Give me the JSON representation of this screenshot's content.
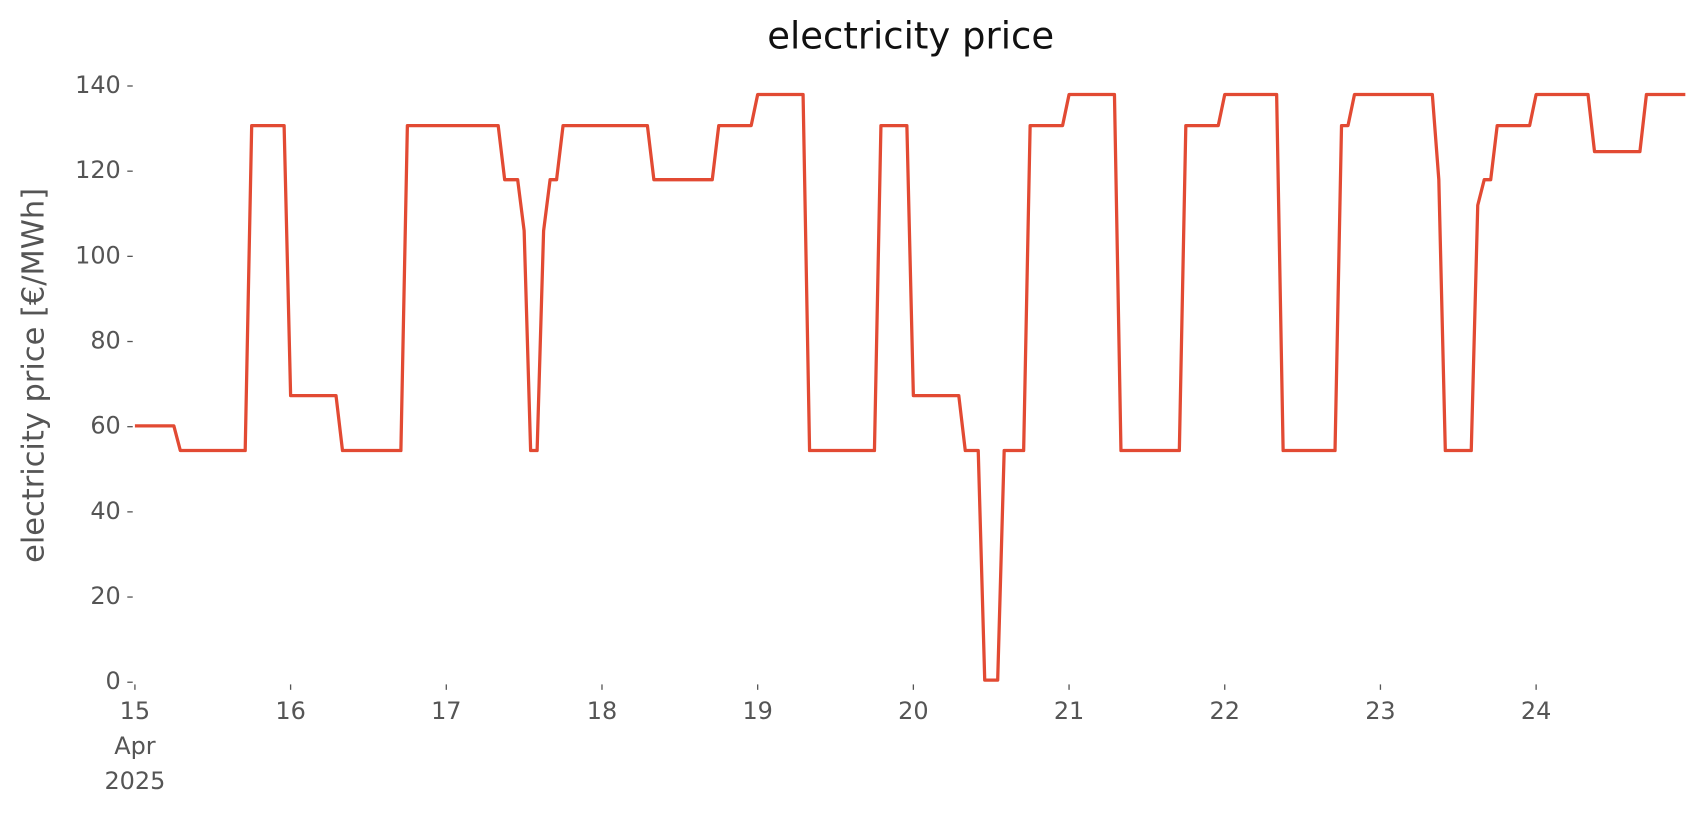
{
  "chart_data": {
    "type": "line",
    "title": "electricity price",
    "y_label": "electricity price [€/MWh]",
    "x": [
      "2025-04-15 00:00",
      "2025-04-15 06:00",
      "2025-04-15 07:00",
      "2025-04-15 17:00",
      "2025-04-15 18:00",
      "2025-04-15 23:00",
      "2025-04-16 00:00",
      "2025-04-16 07:00",
      "2025-04-16 08:00",
      "2025-04-16 17:00",
      "2025-04-16 18:00",
      "2025-04-17 08:00",
      "2025-04-17 09:00",
      "2025-04-17 11:00",
      "2025-04-17 12:00",
      "2025-04-17 13:00",
      "2025-04-17 14:00",
      "2025-04-17 15:00",
      "2025-04-17 16:00",
      "2025-04-17 17:00",
      "2025-04-17 18:00",
      "2025-04-18 07:00",
      "2025-04-18 08:00",
      "2025-04-18 17:00",
      "2025-04-18 18:00",
      "2025-04-18 23:00",
      "2025-04-19 00:00",
      "2025-04-19 07:00",
      "2025-04-19 08:00",
      "2025-04-19 18:00",
      "2025-04-19 19:00",
      "2025-04-19 23:00",
      "2025-04-20 00:00",
      "2025-04-20 07:00",
      "2025-04-20 08:00",
      "2025-04-20 10:00",
      "2025-04-20 11:00",
      "2025-04-20 13:00",
      "2025-04-20 14:00",
      "2025-04-20 17:00",
      "2025-04-20 18:00",
      "2025-04-20 23:00",
      "2025-04-21 00:00",
      "2025-04-21 07:00",
      "2025-04-21 08:00",
      "2025-04-21 17:00",
      "2025-04-21 18:00",
      "2025-04-21 23:00",
      "2025-04-22 00:00",
      "2025-04-22 08:00",
      "2025-04-22 09:00",
      "2025-04-22 17:00",
      "2025-04-22 18:00",
      "2025-04-22 19:00",
      "2025-04-22 20:00",
      "2025-04-23 08:00",
      "2025-04-23 09:00",
      "2025-04-23 10:00",
      "2025-04-23 14:00",
      "2025-04-23 15:00",
      "2025-04-23 16:00",
      "2025-04-23 17:00",
      "2025-04-23 18:00",
      "2025-04-23 23:00",
      "2025-04-24 00:00",
      "2025-04-24 08:00",
      "2025-04-24 09:00",
      "2025-04-24 16:00",
      "2025-04-24 17:00",
      "2025-04-24 23:00"
    ],
    "series": [
      {
        "color": "#e24a33",
        "values": [
          60.2,
          60.2,
          54.4,
          54.4,
          130.7,
          130.7,
          67.3,
          67.3,
          54.4,
          54.4,
          130.7,
          130.7,
          118,
          118,
          106,
          54.4,
          54.4,
          106,
          118,
          118,
          130.7,
          130.7,
          118,
          118,
          130.7,
          130.7,
          138,
          138,
          54.4,
          54.4,
          130.7,
          130.7,
          67.3,
          67.3,
          54.4,
          54.4,
          0.5,
          0.5,
          54.4,
          54.4,
          130.7,
          130.7,
          138,
          138,
          54.4,
          54.4,
          130.7,
          130.7,
          138,
          138,
          54.4,
          54.4,
          130.7,
          130.7,
          138,
          138,
          118,
          54.4,
          54.4,
          112,
          118,
          118,
          130.7,
          130.7,
          138,
          138,
          124.6,
          124.6,
          138,
          138
        ]
      }
    ],
    "xlim": [
      "2025-04-15 00:00",
      "2025-04-24 23:00"
    ],
    "xticks": [
      {
        "value": "2025-04-15 00:00",
        "label": "15\nApr\n2025"
      },
      {
        "value": "2025-04-16 00:00",
        "label": "16"
      },
      {
        "value": "2025-04-17 00:00",
        "label": "17"
      },
      {
        "value": "2025-04-18 00:00",
        "label": "18"
      },
      {
        "value": "2025-04-19 00:00",
        "label": "19"
      },
      {
        "value": "2025-04-20 00:00",
        "label": "20"
      },
      {
        "value": "2025-04-21 00:00",
        "label": "21"
      },
      {
        "value": "2025-04-22 00:00",
        "label": "22"
      },
      {
        "value": "2025-04-23 00:00",
        "label": "23"
      },
      {
        "value": "2025-04-24 00:00",
        "label": "24"
      }
    ],
    "ylim": [
      0,
      140
    ],
    "yticks": [
      0,
      20,
      40,
      60,
      80,
      100,
      120,
      140
    ],
    "grid": false
  }
}
